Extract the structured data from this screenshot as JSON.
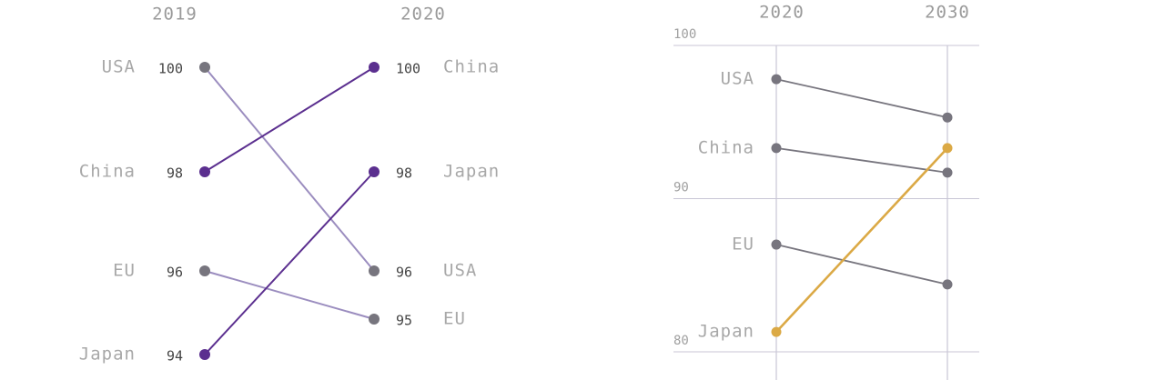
{
  "chart_data": [
    {
      "type": "line",
      "subtype": "slope",
      "x": [
        "2019",
        "2020"
      ],
      "colors": {
        "up": "#5b2f8f",
        "down": "#9b8dbf",
        "dot_neutral": "#77757e"
      },
      "series": [
        {
          "name": "USA",
          "values": [
            100,
            96
          ],
          "label_2019": "100",
          "label_2020": "96"
        },
        {
          "name": "China",
          "values": [
            98,
            100
          ],
          "label_2019": "98",
          "label_2020": "100"
        },
        {
          "name": "EU",
          "values": [
            96,
            95
          ],
          "label_2019": "96",
          "label_2020": "95"
        },
        {
          "name": "Japan",
          "values": [
            94,
            98
          ],
          "label_2019": "94",
          "label_2020": "98"
        }
      ]
    },
    {
      "type": "line",
      "subtype": "slope",
      "x": [
        "2020",
        "2030"
      ],
      "ylim": [
        79,
        100
      ],
      "yticks": [
        "100",
        "90",
        "80"
      ],
      "ytick_values": [
        100,
        90,
        80
      ],
      "grid": true,
      "colors": {
        "default": "#77757e",
        "highlight": "#dba945",
        "grid": "#c9c6d6"
      },
      "highlight": "Japan",
      "series": [
        {
          "name": "USA",
          "values": [
            97.8,
            95.3
          ]
        },
        {
          "name": "China",
          "values": [
            93.3,
            91.7
          ]
        },
        {
          "name": "EU",
          "values": [
            87.0,
            84.4
          ]
        },
        {
          "name": "Japan",
          "values": [
            81.3,
            93.3
          ]
        }
      ]
    }
  ]
}
